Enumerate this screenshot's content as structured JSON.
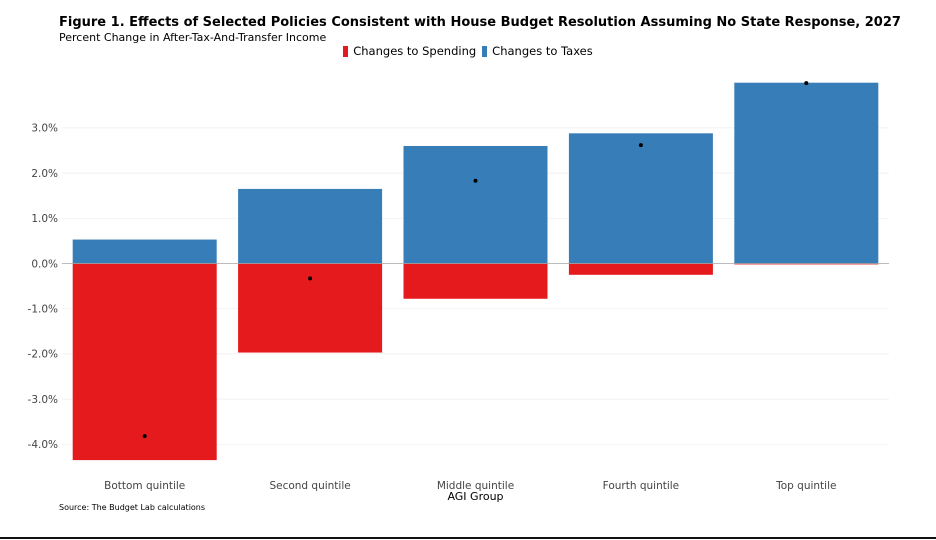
{
  "chart_data": {
    "type": "bar",
    "stacked": true,
    "title": "Figure 1. Effects of Selected Policies Consistent with House Budget Resolution Assuming No State Response, 2027",
    "subtitle": "Percent Change in After-Tax-And-Transfer Income",
    "xlabel": "AGI Group",
    "ylabel": "",
    "categories": [
      "Bottom quintile",
      "Second quintile",
      "Middle quintile",
      "Fourth quintile",
      "Top quintile"
    ],
    "series": [
      {
        "name": "Changes to Spending",
        "color": "#e41a1c",
        "values": [
          -4.35,
          -1.97,
          -0.78,
          -0.25,
          -0.02
        ]
      },
      {
        "name": "Changes to Taxes",
        "color": "#377eb8",
        "values": [
          0.53,
          1.65,
          2.6,
          2.88,
          4.0
        ]
      }
    ],
    "net": [
      -3.82,
      -0.33,
      1.83,
      2.62,
      3.99
    ],
    "yticks": [
      "-4.0%",
      "-3.0%",
      "-2.0%",
      "-1.0%",
      "0.0%",
      "1.0%",
      "2.0%",
      "3.0%"
    ],
    "ytick_values": [
      -4,
      -3,
      -2,
      -1,
      0,
      1,
      2,
      3
    ],
    "ylim": [
      -4.45,
      4.05
    ],
    "legend_position": "top-center",
    "grid": true
  },
  "source": "Source: The Budget Lab calculations"
}
